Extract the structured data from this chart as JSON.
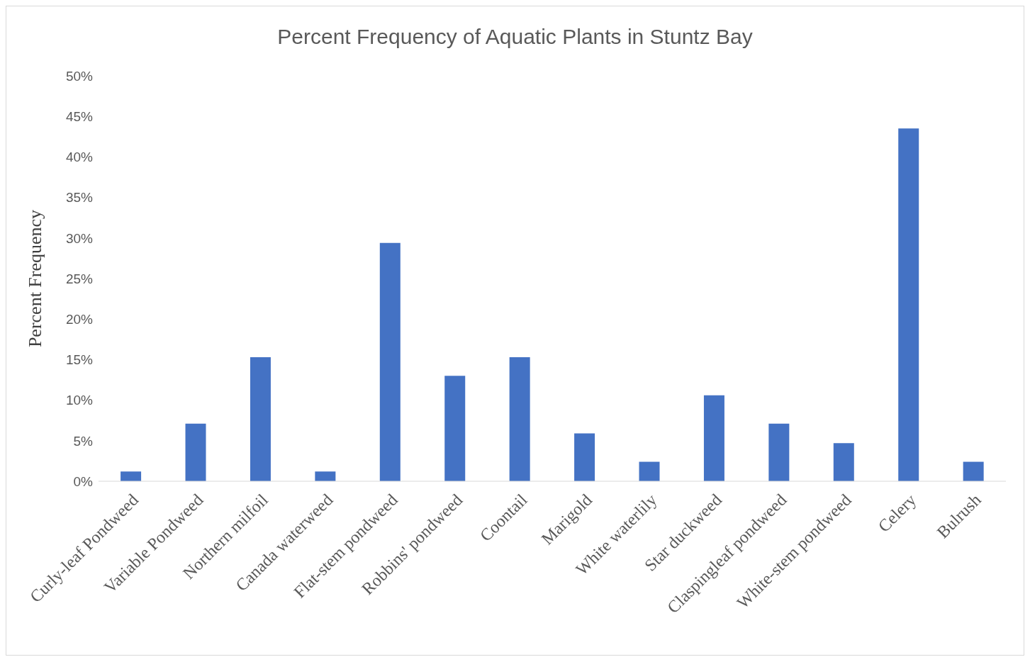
{
  "chart_data": {
    "type": "bar",
    "title": "Percent Frequency of Aquatic Plants in Stuntz Bay",
    "ylabel": "Percent Frequency",
    "categories": [
      "Curly-leaf Pondweed",
      "Variable Pondweed",
      "Northern milfoil",
      "Canada waterweed",
      "Flat-stem pondweed",
      "Robbins' pondweed",
      "Coontail",
      "Marigold",
      "White waterlily",
      "Star duckweed",
      "Claspingleaf pondweed",
      "White-stem pondweed",
      "Celery",
      "Bulrush"
    ],
    "values": [
      1.2,
      7.1,
      15.3,
      1.2,
      29.4,
      13.0,
      15.3,
      5.9,
      2.4,
      10.6,
      7.1,
      4.7,
      43.5,
      2.4
    ],
    "color": "#4472c4",
    "ylim": [
      0,
      50
    ],
    "yticks": [
      {
        "value": 0,
        "label": "0%"
      },
      {
        "value": 5,
        "label": "5%"
      },
      {
        "value": 10,
        "label": "10%"
      },
      {
        "value": 15,
        "label": "15%"
      },
      {
        "value": 20,
        "label": "20%"
      },
      {
        "value": 25,
        "label": "25%"
      },
      {
        "value": 30,
        "label": "30%"
      },
      {
        "value": 35,
        "label": "35%"
      },
      {
        "value": 40,
        "label": "40%"
      },
      {
        "value": 45,
        "label": "45%"
      },
      {
        "value": 50,
        "label": "50%"
      }
    ],
    "grid": false,
    "legend": false
  }
}
